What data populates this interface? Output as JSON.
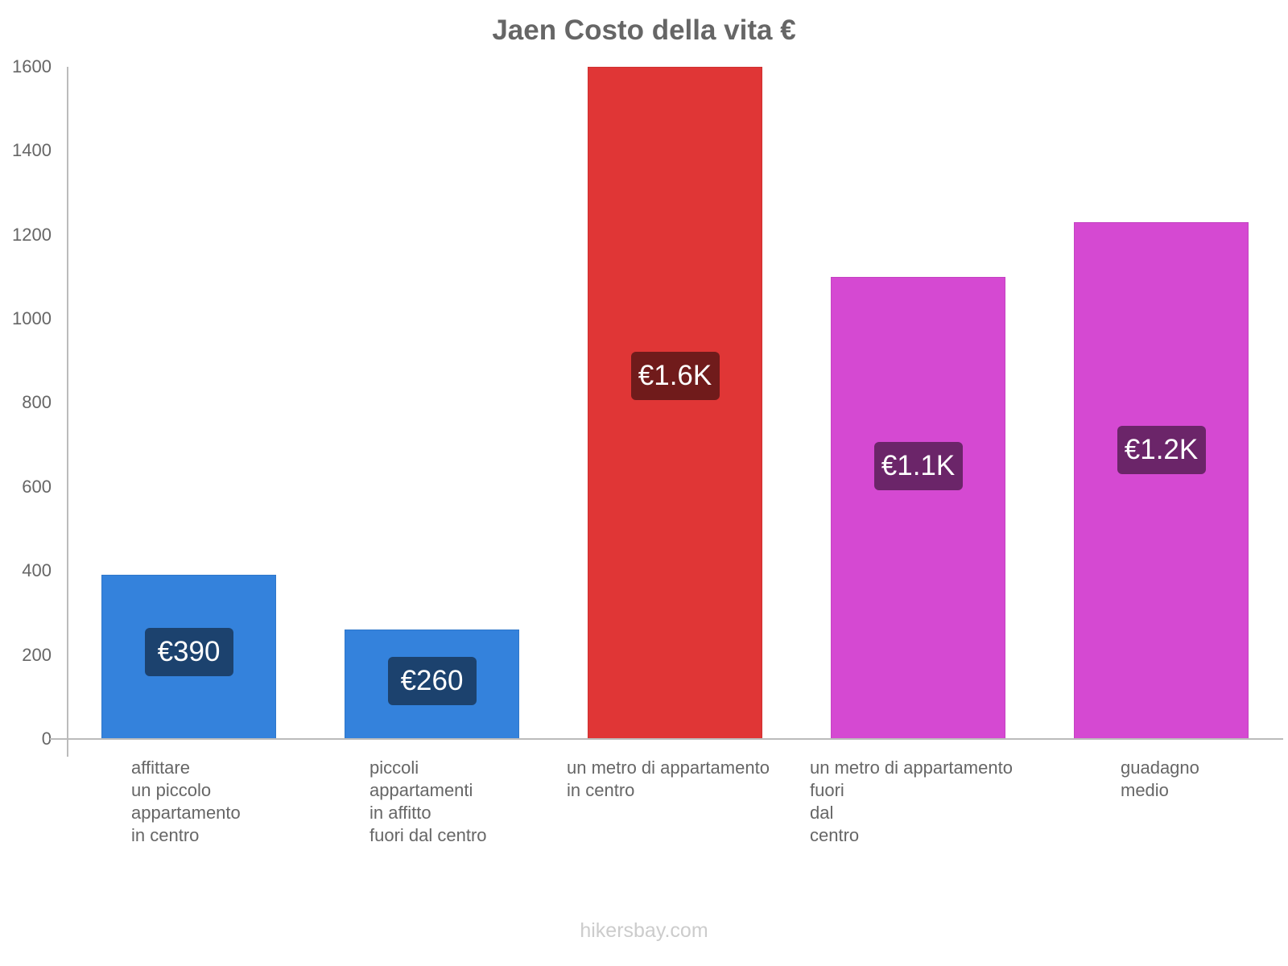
{
  "chart_data": {
    "type": "bar",
    "title": "Jaen Costo della vita €",
    "xlabel": "",
    "ylabel": "",
    "ylim": [
      0,
      1600
    ],
    "yticks": [
      0,
      200,
      400,
      600,
      800,
      1000,
      1200,
      1400,
      1600
    ],
    "grid": false,
    "legend": null,
    "categories": [
      "affittare un piccolo appartamento in centro",
      "piccoli appartamenti in affitto fuori dal centro",
      "un metro di appartamento in centro",
      "un metro di appartamento fuori dal centro",
      "guadagno medio"
    ],
    "category_label_lines": [
      [
        "affittare",
        "un piccolo",
        "appartamento",
        "in centro"
      ],
      [
        "piccoli",
        "appartamenti",
        "in affitto",
        "fuori dal centro"
      ],
      [
        "un metro di appartamento",
        "in centro"
      ],
      [
        "un metro di appartamento",
        "fuori",
        "dal",
        "centro"
      ],
      [
        "guadagno",
        "medio"
      ]
    ],
    "values": [
      390,
      260,
      1600,
      1100,
      1230
    ],
    "data_labels": [
      "€390",
      "€260",
      "€1.6K",
      "€1.1K",
      "€1.2K"
    ],
    "bar_colors": [
      "#3482dc",
      "#3482dc",
      "#e03636",
      "#d549d2",
      "#d549d2"
    ],
    "badge_colors": [
      "#1c426e",
      "#1c426e",
      "#701b1b",
      "#6b2569",
      "#6b2569"
    ]
  },
  "watermark": "hikersbay.com"
}
